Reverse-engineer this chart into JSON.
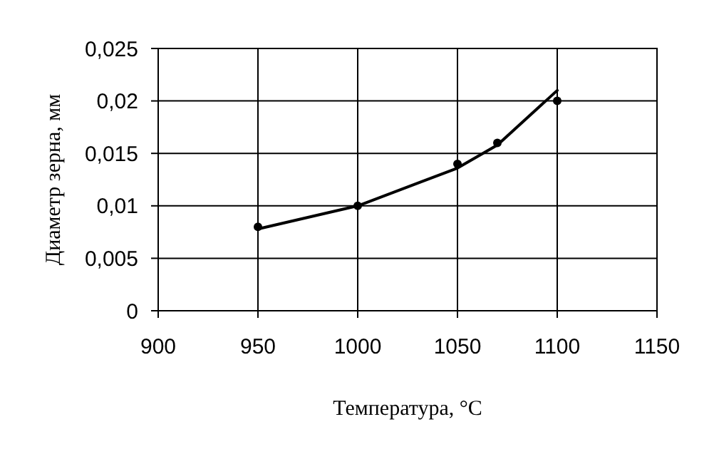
{
  "chart_data": {
    "type": "scatter",
    "xlabel": "Температура, °C",
    "ylabel": "Диаметр зерна, мм",
    "xlim": [
      900,
      1150
    ],
    "xticks": [
      900,
      950,
      1000,
      1050,
      1100,
      1150
    ],
    "ylim": [
      0,
      0.025
    ],
    "yticks": [
      {
        "value": 0,
        "label": "0"
      },
      {
        "value": 0.005,
        "label": "0,005"
      },
      {
        "value": 0.01,
        "label": "0,01"
      },
      {
        "value": 0.015,
        "label": "0,015"
      },
      {
        "value": 0.02,
        "label": "0,02"
      },
      {
        "value": 0.025,
        "label": "0,025"
      }
    ],
    "grid": true,
    "series": [
      {
        "marker": "circle",
        "color": "#000000",
        "x": [
          950,
          1000,
          1050,
          1070,
          1100
        ],
        "values": [
          0.008,
          0.01,
          0.014,
          0.016,
          0.02
        ]
      },
      {
        "type": "line",
        "color": "#000000",
        "line_style": "solid",
        "x": [
          950,
          1000,
          1050,
          1070,
          1100
        ],
        "values": [
          0.0078,
          0.01,
          0.0136,
          0.0158,
          0.021
        ]
      }
    ]
  }
}
